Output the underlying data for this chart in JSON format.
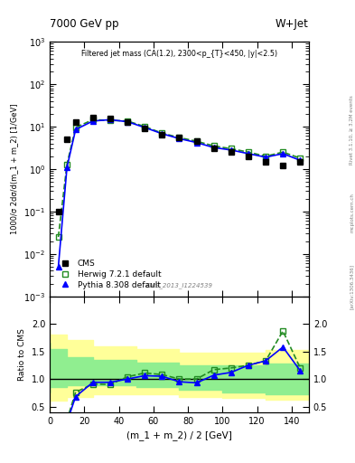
{
  "title_left": "7000 GeV pp",
  "title_right": "W+Jet",
  "plot_title": "Filtered jet mass (CA(1.2), 2300<p_{T}<450, |y|<2.5)",
  "ylabel_main": "1000/σ 2dσ/d(m_1 + m_2) [1/GeV]",
  "ylabel_ratio": "Ratio to CMS",
  "xlabel": "(m_1 + m_2) / 2 [GeV]",
  "watermark": "CMS_2013_I1224539",
  "right_label": "Rivet 3.1.10, ≥ 3.2M events",
  "arxiv_label": "[arXiv:1306.3436]",
  "mcplots_label": "mcplots.cern.ch",
  "cms_x": [
    5,
    10,
    15,
    25,
    35,
    45,
    55,
    65,
    75,
    85,
    95,
    105,
    115,
    125,
    135,
    145
  ],
  "cms_y": [
    0.1,
    5.0,
    12.5,
    16.0,
    15.5,
    13.0,
    9.0,
    6.5,
    5.5,
    4.5,
    3.0,
    2.5,
    2.0,
    1.5,
    1.2,
    1.5
  ],
  "herwig_x": [
    5,
    10,
    15,
    25,
    35,
    45,
    55,
    65,
    75,
    85,
    95,
    105,
    115,
    125,
    135,
    145
  ],
  "herwig_y": [
    0.025,
    1.3,
    9.5,
    14.5,
    14.0,
    13.5,
    10.0,
    7.0,
    5.5,
    4.5,
    3.5,
    3.0,
    2.5,
    2.0,
    2.5,
    1.8
  ],
  "pythia_x": [
    5,
    10,
    15,
    25,
    35,
    45,
    55,
    65,
    75,
    85,
    95,
    105,
    115,
    125,
    135,
    145
  ],
  "pythia_y": [
    0.005,
    1.1,
    8.5,
    13.5,
    14.5,
    13.0,
    9.5,
    6.8,
    5.2,
    4.2,
    3.2,
    2.8,
    2.3,
    1.9,
    2.3,
    1.6
  ],
  "ratio_herwig_x": [
    5,
    10,
    15,
    25,
    35,
    45,
    55,
    65,
    75,
    85,
    95,
    105,
    115,
    125,
    135,
    145
  ],
  "ratio_herwig_y": [
    0.25,
    0.26,
    0.76,
    0.91,
    0.9,
    1.04,
    1.11,
    1.08,
    1.0,
    1.0,
    1.17,
    1.2,
    1.25,
    1.33,
    1.87,
    1.2
  ],
  "ratio_pythia_x": [
    5,
    10,
    15,
    25,
    35,
    45,
    55,
    65,
    75,
    85,
    95,
    105,
    115,
    125,
    135,
    145
  ],
  "ratio_pythia_y": [
    0.05,
    0.22,
    0.68,
    0.94,
    0.94,
    1.0,
    1.06,
    1.05,
    0.95,
    0.93,
    1.07,
    1.12,
    1.25,
    1.33,
    1.58,
    1.15
  ],
  "band_x": [
    0,
    10,
    25,
    50,
    75,
    100,
    125,
    150
  ],
  "band_inner_lo": [
    0.75,
    0.85,
    0.88,
    0.88,
    0.85,
    0.8,
    0.75,
    0.72
  ],
  "band_inner_hi": [
    1.65,
    1.55,
    1.4,
    1.35,
    1.3,
    1.25,
    1.25,
    1.28
  ],
  "band_outer_lo": [
    0.42,
    0.6,
    0.68,
    0.73,
    0.72,
    0.68,
    0.65,
    0.62
  ],
  "band_outer_hi": [
    1.9,
    1.8,
    1.7,
    1.6,
    1.55,
    1.48,
    1.48,
    1.52
  ],
  "cms_color": "black",
  "herwig_color": "#228B22",
  "pythia_color": "blue",
  "band_inner_color": "#90EE90",
  "band_outer_color": "#FFFF99",
  "xlim": [
    0,
    150
  ],
  "ylim_main": [
    0.001,
    1000.0
  ],
  "ylim_ratio": [
    0.4,
    2.5
  ],
  "ratio_yticks": [
    0.5,
    1.0,
    1.5,
    2.0
  ]
}
